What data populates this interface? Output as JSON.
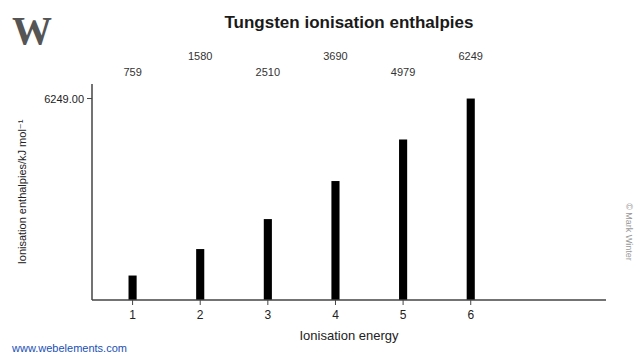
{
  "chart_data": {
    "type": "bar",
    "title": "Tungsten ionisation enthalpies",
    "x_label": "Ionisation energy",
    "y_label": "Ionisation enthalpies/kJ mol⁻¹",
    "x": [
      1,
      2,
      3,
      4,
      5,
      6
    ],
    "values": [
      759,
      1580,
      2510,
      3690,
      4979,
      6249
    ],
    "color": "#000000",
    "xlim": [
      0.4,
      8.0
    ],
    "xticks": [
      1,
      2,
      3,
      4,
      5,
      6
    ],
    "ylim": [
      0,
      6700
    ],
    "yticks": [
      {
        "value": 6249,
        "label": "6249.00"
      }
    ],
    "grid": false,
    "data_labels": true,
    "annotations": [
      "W",
      "www.webelements.com",
      "© Mark Winter"
    ]
  }
}
